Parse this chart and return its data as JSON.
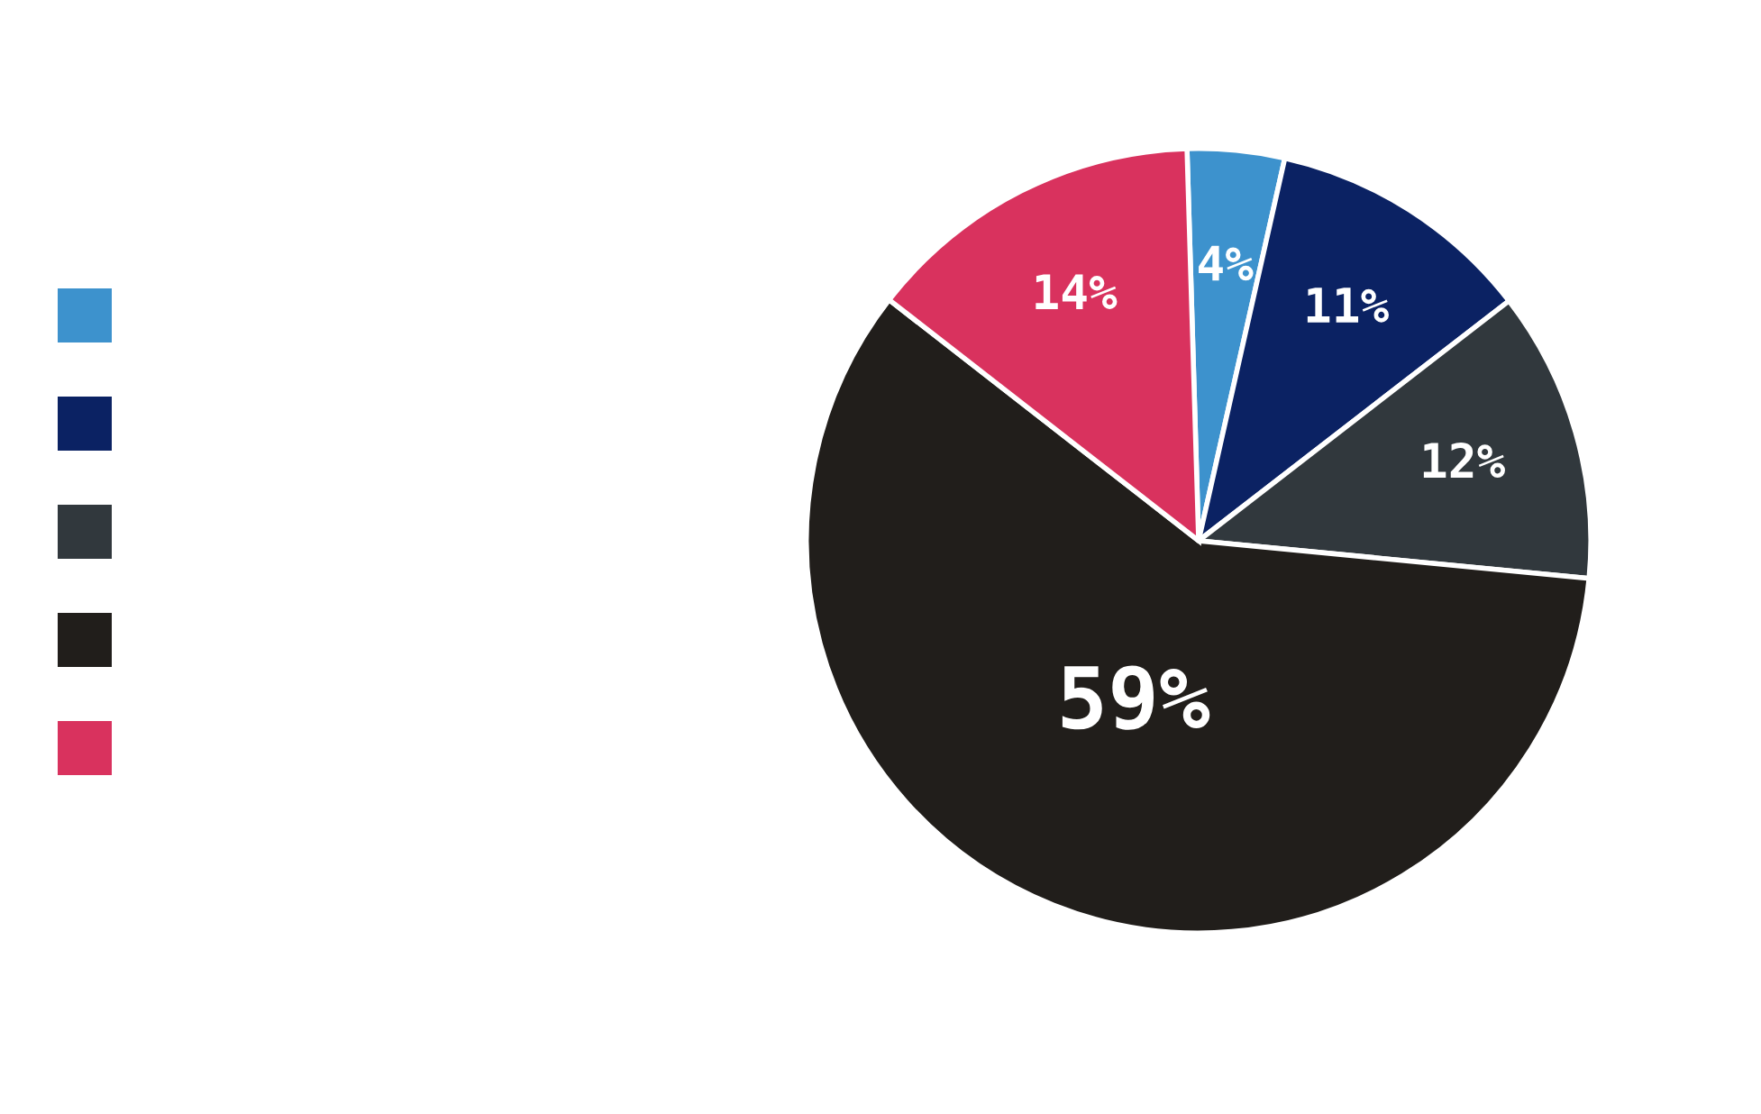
{
  "chart_data": {
    "type": "pie",
    "categories": [
      null,
      null,
      null,
      null,
      null
    ],
    "values": [
      4,
      11,
      12,
      59,
      14
    ],
    "value_labels": [
      "4%",
      "11%",
      "12%",
      "59%",
      "14%"
    ],
    "colors": [
      "#3d92cd",
      "#0b2263",
      "#31383d",
      "#211e1b",
      "#d9325e"
    ]
  }
}
